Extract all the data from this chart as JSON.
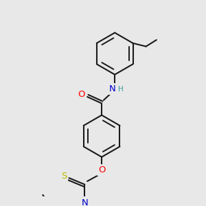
{
  "background_color": "#e8e8e8",
  "bond_color": "#1a1a1a",
  "bond_width": 1.5,
  "atom_colors": {
    "O": "#ff0000",
    "N": "#0000cc",
    "S": "#bbbb00",
    "H": "#339999",
    "C": "#1a1a1a"
  },
  "font_size": 9.5
}
